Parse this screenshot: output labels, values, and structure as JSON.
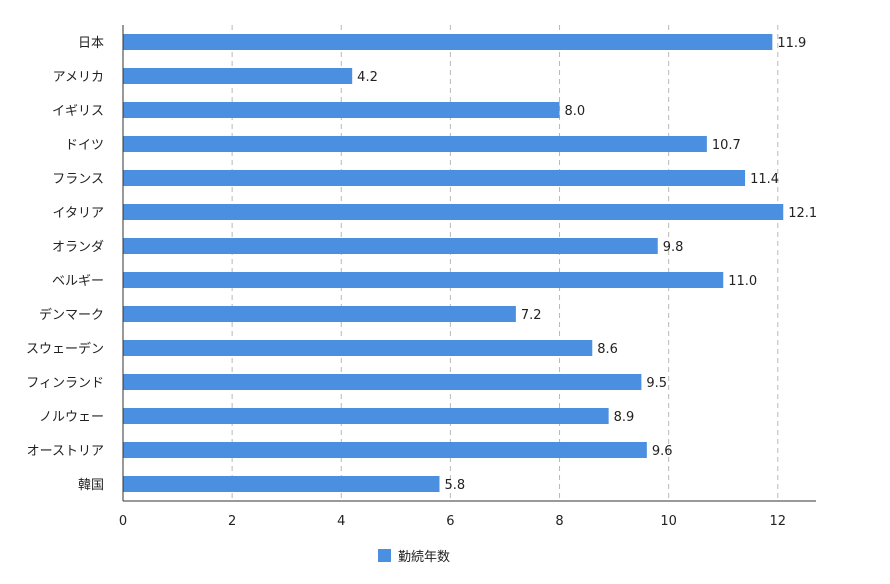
{
  "chart_data": {
    "type": "bar",
    "orientation": "horizontal",
    "categories": [
      "日本",
      "アメリカ",
      "イギリス",
      "ドイツ",
      "フランス",
      "イタリア",
      "オランダ",
      "ベルギー",
      "デンマーク",
      "スウェーデン",
      "フィンランド",
      "ノルウェー",
      "オーストリア",
      "韓国"
    ],
    "series": [
      {
        "name": "勤続年数",
        "values": [
          11.9,
          4.2,
          8.0,
          10.7,
          11.4,
          12.1,
          9.8,
          11.0,
          7.2,
          8.6,
          9.5,
          8.9,
          9.6,
          5.8
        ],
        "value_labels": [
          "11.9",
          "4.2",
          "8.0",
          "10.7",
          "11.4",
          "12.1",
          "9.8",
          "11.0",
          "7.2",
          "8.6",
          "9.5",
          "8.9",
          "9.6",
          "5.8"
        ]
      }
    ],
    "x_ticks": [
      "0",
      "2",
      "4",
      "6",
      "8",
      "10",
      "12"
    ],
    "xlim": [
      0,
      12.7
    ],
    "grid": "vertical-dashed",
    "legend": "bottom-center",
    "colors": {
      "bar": "#4a8fe0",
      "grid": "#b8b8b8",
      "axis": "#333333"
    }
  }
}
